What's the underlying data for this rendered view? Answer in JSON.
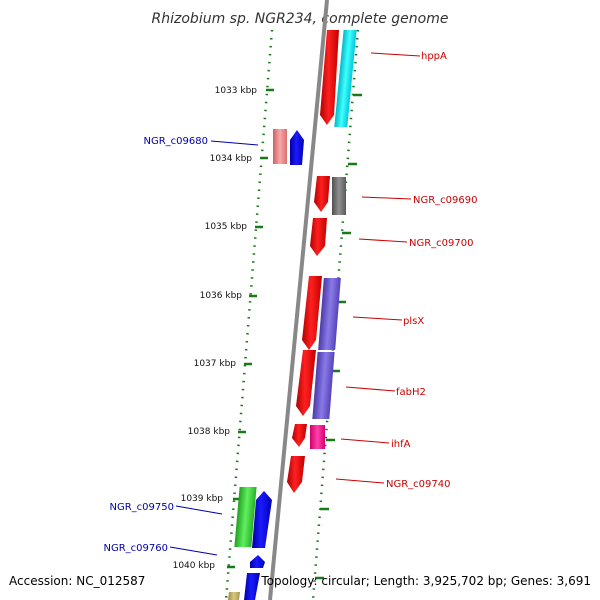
{
  "title": "Rhizobium sp. NGR234, complete genome",
  "footer": {
    "accession": "Accession: NC_012587",
    "topology": "Topology: circular; Length: 3,925,702 bp; Genes: 3,691"
  },
  "ticks": [
    "1033 kbp",
    "1034 kbp",
    "1035 kbp",
    "1036 kbp",
    "1037 kbp",
    "1038 kbp",
    "1039 kbp",
    "1040 kbp"
  ],
  "genes": {
    "forward": [
      {
        "label": "NGR_c09680",
        "color": "#0000ff"
      },
      {
        "label": "NGR_c09750",
        "color": "#0000ff"
      },
      {
        "label": "NGR_c09760",
        "color": "#0000ff"
      }
    ],
    "reverse": [
      {
        "label": "hppA",
        "color": "#ff0000"
      },
      {
        "label": "NGR_c09690",
        "color": "#ff0000"
      },
      {
        "label": "NGR_c09700",
        "color": "#ff0000"
      },
      {
        "label": "plsX",
        "color": "#ff0000"
      },
      {
        "label": "fabH2",
        "color": "#ff0000"
      },
      {
        "label": "ihfA",
        "color": "#ff0000"
      },
      {
        "label": "NGR_c09740",
        "color": "#ff0000"
      }
    ]
  },
  "colors": {
    "backbone": "#888888",
    "dotted_ring": "#1a7a1a",
    "cog_cyan": "#00e5ee",
    "cog_grey": "#707070",
    "cog_purple": "#6a5acd",
    "cog_magenta": "#ff1493",
    "cog_pink": "#f08080",
    "cog_green": "#32cd32",
    "cog_khaki": "#c8b464"
  }
}
